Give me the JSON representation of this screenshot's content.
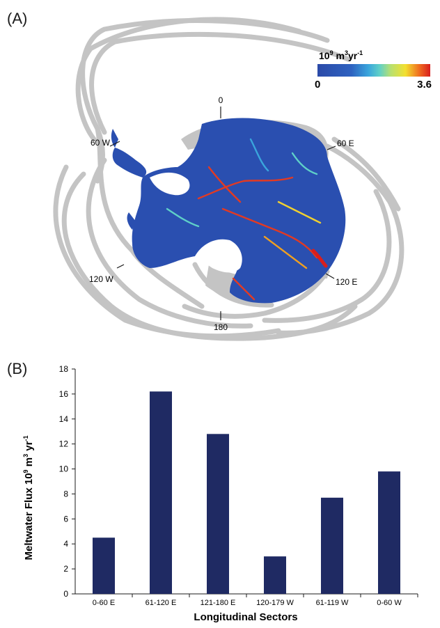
{
  "panel_a": {
    "label": "(A)",
    "colorbar": {
      "unit_base": "10",
      "unit_exp1": "9",
      "unit_m": " m",
      "unit_exp2": "3",
      "unit_yr": "yr",
      "unit_exp3": "-1",
      "min_label": "0",
      "max_label": "3.6"
    },
    "longitude_labels": {
      "north": "0",
      "top_right": "60 E",
      "bottom_right": "120 E",
      "bottom": "180",
      "bottom_left": "120 W",
      "top_left": "60 W"
    },
    "colors": {
      "ice_blue": "#2a4fb0",
      "track_gray": "#c4c4c4"
    }
  },
  "panel_b": {
    "label": "(B)"
  },
  "chart_data": {
    "type": "bar",
    "categories": [
      "0-60 E",
      "61-120 E",
      "121-180 E",
      "120-179 W",
      "61-119 W",
      "0-60 W"
    ],
    "values": [
      4.5,
      16.2,
      12.8,
      3.0,
      7.7,
      9.8
    ],
    "xlabel": "Longitudinal Sectors",
    "ylabel_main": "Meltwater Flux 10",
    "ylabel_sup1": "9",
    "ylabel_mid": " m",
    "ylabel_sup2": "3",
    "ylabel_yr": " yr",
    "ylabel_sup3": "-1",
    "ylim": [
      0,
      18
    ],
    "yticks": [
      0,
      2,
      4,
      6,
      8,
      10,
      12,
      14,
      16,
      18
    ],
    "bar_color": "#1f2a63",
    "grid": false
  }
}
